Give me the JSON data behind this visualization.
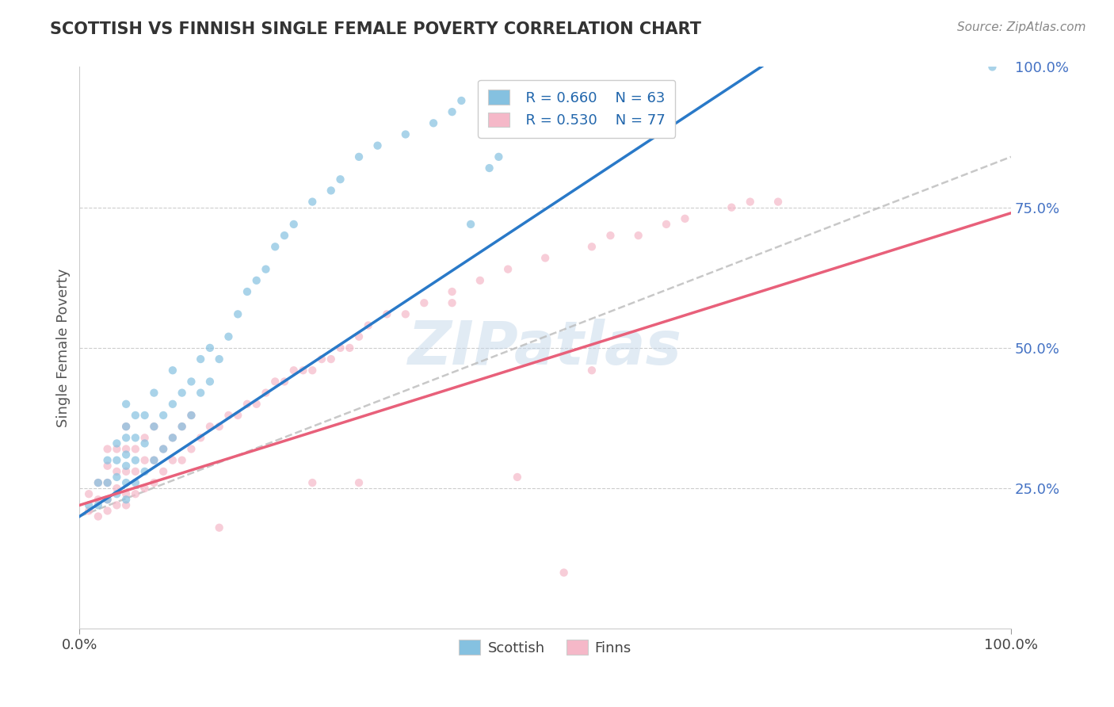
{
  "title": "SCOTTISH VS FINNISH SINGLE FEMALE POVERTY CORRELATION CHART",
  "source": "Source: ZipAtlas.com",
  "ylabel": "Single Female Poverty",
  "xlim": [
    0,
    1
  ],
  "ylim": [
    0,
    1
  ],
  "ytick_labels_right": [
    "25.0%",
    "50.0%",
    "75.0%",
    "100.0%"
  ],
  "ytick_positions_right": [
    0.25,
    0.5,
    0.75,
    1.0
  ],
  "legend_r1": "R = 0.660",
  "legend_n1": "N = 63",
  "legend_r2": "R = 0.530",
  "legend_n2": "N = 77",
  "blue_color": "#85c1e0",
  "pink_color": "#f5b8c8",
  "line_blue": "#2979c8",
  "line_pink": "#e8607a",
  "line_gray": "#bbbbbb",
  "watermark": "ZIPatlas",
  "background_color": "#ffffff",
  "scatter_alpha": 0.7,
  "scatter_size": 55,
  "scottish_x": [
    0.01,
    0.02,
    0.02,
    0.03,
    0.03,
    0.03,
    0.04,
    0.04,
    0.04,
    0.04,
    0.05,
    0.05,
    0.05,
    0.05,
    0.05,
    0.05,
    0.05,
    0.06,
    0.06,
    0.06,
    0.06,
    0.07,
    0.07,
    0.07,
    0.08,
    0.08,
    0.08,
    0.09,
    0.09,
    0.1,
    0.1,
    0.1,
    0.11,
    0.11,
    0.12,
    0.12,
    0.13,
    0.13,
    0.14,
    0.14,
    0.15,
    0.16,
    0.17,
    0.18,
    0.19,
    0.2,
    0.21,
    0.22,
    0.23,
    0.25,
    0.27,
    0.28,
    0.3,
    0.32,
    0.35,
    0.38,
    0.4,
    0.41,
    0.42,
    0.44,
    0.45,
    0.5,
    0.98
  ],
  "scottish_y": [
    0.22,
    0.22,
    0.26,
    0.23,
    0.26,
    0.3,
    0.24,
    0.27,
    0.3,
    0.33,
    0.23,
    0.26,
    0.29,
    0.31,
    0.34,
    0.36,
    0.4,
    0.26,
    0.3,
    0.34,
    0.38,
    0.28,
    0.33,
    0.38,
    0.3,
    0.36,
    0.42,
    0.32,
    0.38,
    0.34,
    0.4,
    0.46,
    0.36,
    0.42,
    0.38,
    0.44,
    0.42,
    0.48,
    0.44,
    0.5,
    0.48,
    0.52,
    0.56,
    0.6,
    0.62,
    0.64,
    0.68,
    0.7,
    0.72,
    0.76,
    0.78,
    0.8,
    0.84,
    0.86,
    0.88,
    0.9,
    0.92,
    0.94,
    0.72,
    0.82,
    0.84,
    0.88,
    1.0
  ],
  "finns_x": [
    0.01,
    0.01,
    0.02,
    0.02,
    0.02,
    0.03,
    0.03,
    0.03,
    0.03,
    0.03,
    0.04,
    0.04,
    0.04,
    0.04,
    0.05,
    0.05,
    0.05,
    0.05,
    0.05,
    0.06,
    0.06,
    0.06,
    0.07,
    0.07,
    0.07,
    0.08,
    0.08,
    0.08,
    0.09,
    0.09,
    0.1,
    0.1,
    0.11,
    0.11,
    0.12,
    0.12,
    0.13,
    0.14,
    0.15,
    0.16,
    0.17,
    0.18,
    0.19,
    0.2,
    0.21,
    0.22,
    0.23,
    0.24,
    0.25,
    0.26,
    0.27,
    0.28,
    0.29,
    0.3,
    0.31,
    0.33,
    0.35,
    0.37,
    0.4,
    0.43,
    0.46,
    0.5,
    0.55,
    0.57,
    0.6,
    0.63,
    0.65,
    0.7,
    0.72,
    0.75,
    0.4,
    0.55,
    0.3,
    0.25,
    0.47,
    0.52,
    0.15
  ],
  "finns_y": [
    0.21,
    0.24,
    0.2,
    0.23,
    0.26,
    0.21,
    0.23,
    0.26,
    0.29,
    0.32,
    0.22,
    0.25,
    0.28,
    0.32,
    0.22,
    0.24,
    0.28,
    0.32,
    0.36,
    0.24,
    0.28,
    0.32,
    0.25,
    0.3,
    0.34,
    0.26,
    0.3,
    0.36,
    0.28,
    0.32,
    0.3,
    0.34,
    0.3,
    0.36,
    0.32,
    0.38,
    0.34,
    0.36,
    0.36,
    0.38,
    0.38,
    0.4,
    0.4,
    0.42,
    0.44,
    0.44,
    0.46,
    0.46,
    0.46,
    0.48,
    0.48,
    0.5,
    0.5,
    0.52,
    0.54,
    0.56,
    0.56,
    0.58,
    0.6,
    0.62,
    0.64,
    0.66,
    0.68,
    0.7,
    0.7,
    0.72,
    0.73,
    0.75,
    0.76,
    0.76,
    0.58,
    0.46,
    0.26,
    0.26,
    0.27,
    0.1,
    0.18
  ],
  "gray_line_x": [
    0.0,
    1.0
  ],
  "gray_line_y": [
    0.2,
    0.84
  ]
}
